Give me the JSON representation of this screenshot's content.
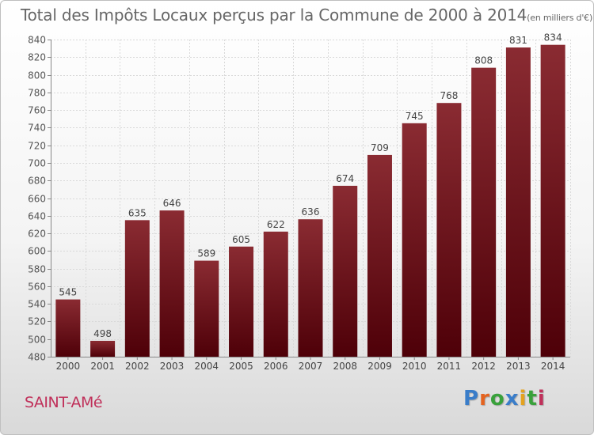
{
  "title_main": "Total des Impôts Locaux perçus par la Commune de 2000 à 2014",
  "title_unit": "(en milliers d'€)",
  "commune": "SAINT-AMé",
  "brand": {
    "letters": [
      "P",
      "r",
      "o",
      "x",
      "i",
      "t",
      "i"
    ],
    "colors": [
      "#3a7dc9",
      "#e4631f",
      "#39a13b",
      "#3a7dc9",
      "#e4a21f",
      "#39a13b",
      "#c0305a"
    ]
  },
  "chart_data": {
    "type": "bar",
    "title": "Total des Impôts Locaux perçus par la Commune de 2000 à 2014",
    "xlabel": "",
    "ylabel": "",
    "categories": [
      "2000",
      "2001",
      "2002",
      "2003",
      "2004",
      "2005",
      "2006",
      "2007",
      "2008",
      "2009",
      "2010",
      "2011",
      "2012",
      "2013",
      "2014"
    ],
    "values": [
      545,
      498,
      635,
      646,
      589,
      605,
      622,
      636,
      674,
      709,
      745,
      768,
      808,
      831,
      834
    ],
    "ylim": [
      480,
      840
    ],
    "yticks": [
      480,
      500,
      520,
      540,
      560,
      580,
      600,
      620,
      640,
      660,
      680,
      700,
      720,
      740,
      760,
      780,
      800,
      820,
      840
    ],
    "grid": true,
    "bar_color": "#7a1a22"
  }
}
